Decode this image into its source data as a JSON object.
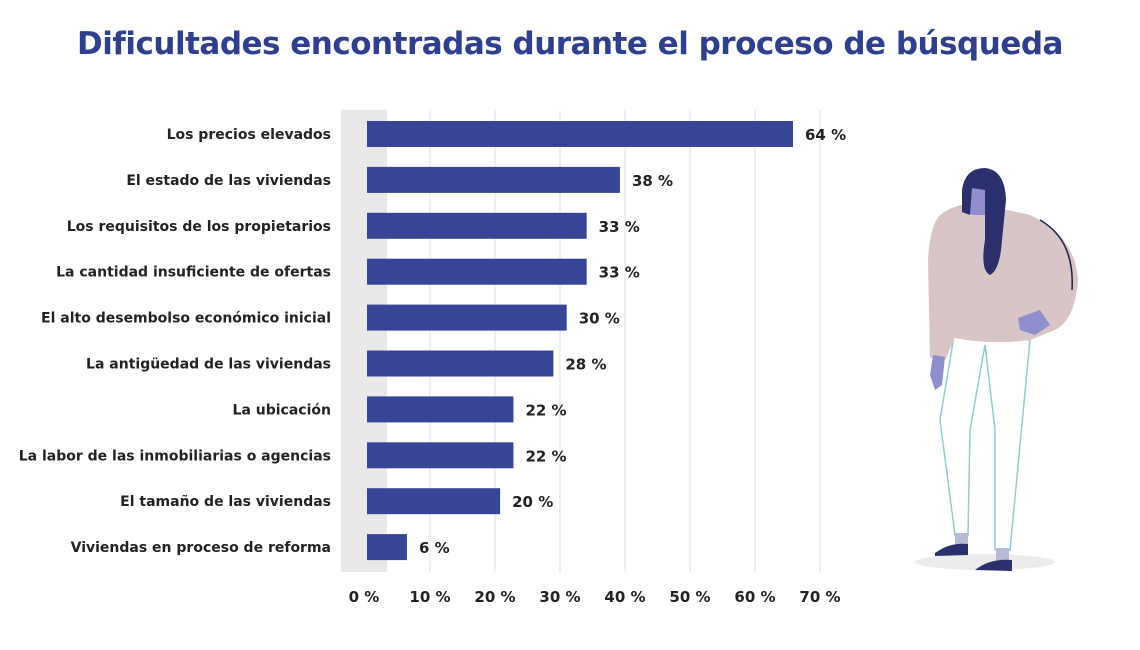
{
  "chart_data": {
    "type": "bar",
    "orientation": "horizontal",
    "title": "Dificultades encontradas durante el proceso de búsqueda",
    "categories": [
      "Los precios elevados",
      "El estado de las viviendas",
      "Los requisitos de los propietarios",
      "La cantidad insuficiente de ofertas",
      "El alto desembolso económico inicial",
      "La antigüedad de las viviendas",
      "La ubicación",
      "La labor de las inmobiliarias o agencias",
      "El tamaño de las viviendas",
      "Viviendas en proceso de reforma"
    ],
    "values": [
      64,
      38,
      33,
      33,
      30,
      28,
      22,
      22,
      20,
      6
    ],
    "value_labels": [
      "64 %",
      "38 %",
      "33 %",
      "33 %",
      "30 %",
      "28 %",
      "22 %",
      "22 %",
      "20 %",
      "6 %"
    ],
    "xlim": [
      0,
      70
    ],
    "xticks": [
      "0 %",
      "10 %",
      "20 %",
      "30 %",
      "40 %",
      "50 %",
      "60 %",
      "70 %"
    ],
    "xlabel": "",
    "ylabel": "",
    "grid": "vertical",
    "colors": {
      "bar": "#364596",
      "title": "#2f3f8f",
      "grid": "#e2e2e2",
      "band": "#e9e9e9"
    }
  }
}
